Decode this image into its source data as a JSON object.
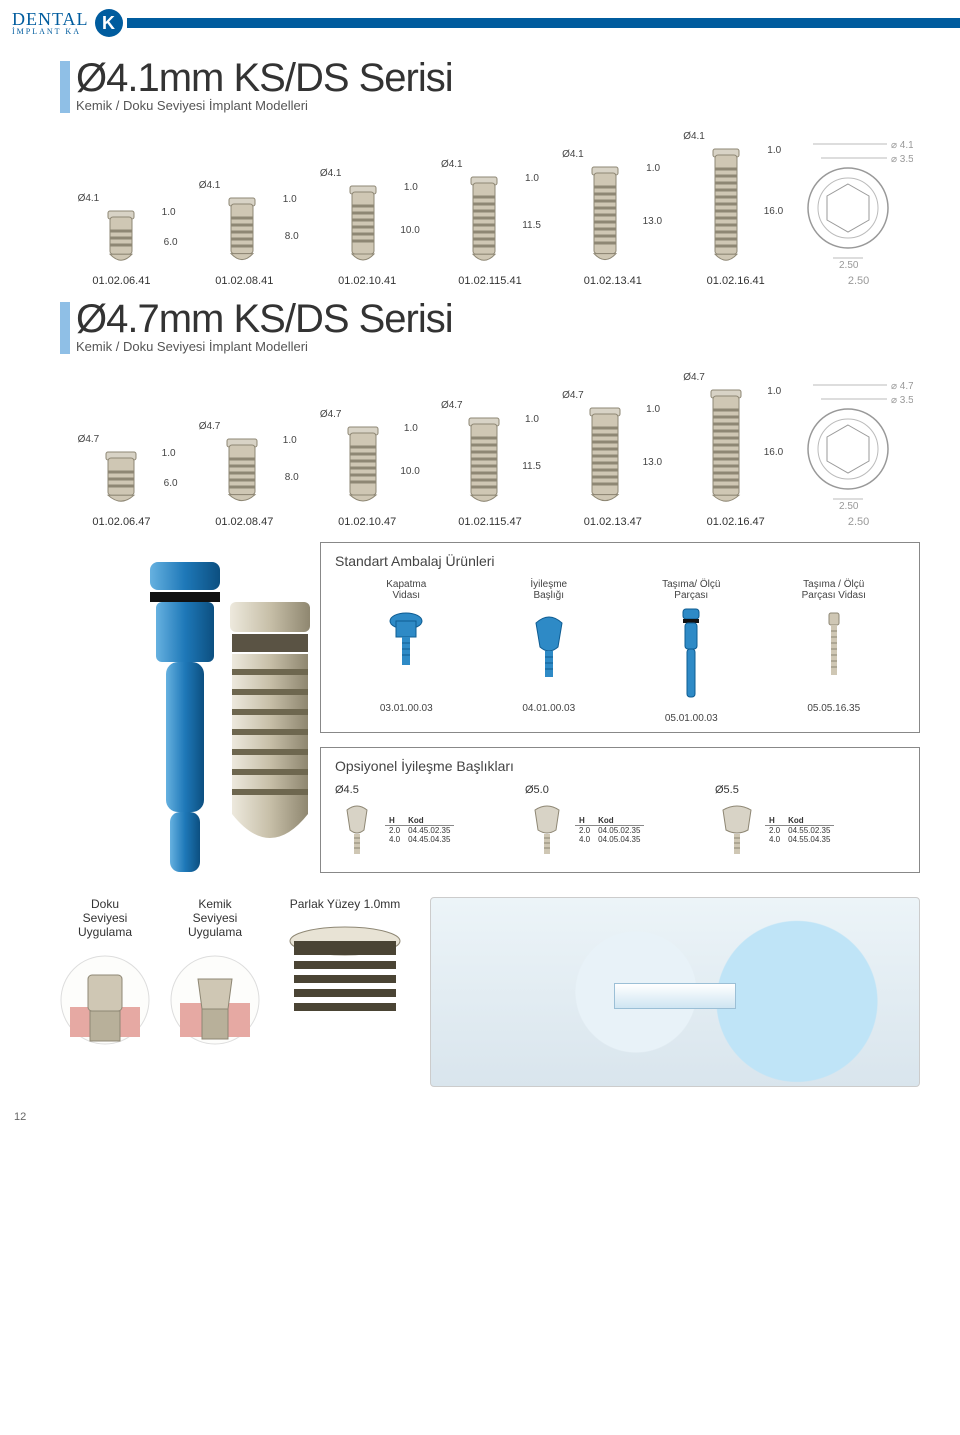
{
  "brand": {
    "line1": "DENTAL",
    "line2": "İMPLANT KA",
    "letter": "K"
  },
  "series41": {
    "title": "Ø4.1mm KS/DS Serisi",
    "subtitle": "Kemik / Doku Seviyesi İmplant Modelleri",
    "diameter_label": "Ø4.1",
    "shoulder": "1.0",
    "lengths": [
      "6.0",
      "8.0",
      "10.0",
      "11.5",
      "13.0",
      "16.0"
    ],
    "codes": [
      "01.02.06.41",
      "01.02.08.41",
      "01.02.10.41",
      "01.02.115.41",
      "01.02.13.41",
      "01.02.16.41"
    ],
    "top_outer": "4.1",
    "top_inner": "3.5",
    "top_width": "2.50"
  },
  "series47": {
    "title": "Ø4.7mm KS/DS Serisi",
    "subtitle": "Kemik / Doku Seviyesi İmplant Modelleri",
    "diameter_label": "Ø4.7",
    "shoulder": "1.0",
    "lengths": [
      "6.0",
      "8.0",
      "10.0",
      "11.5",
      "13.0",
      "16.0"
    ],
    "codes": [
      "01.02.06.47",
      "01.02.08.47",
      "01.02.10.47",
      "01.02.115.47",
      "01.02.13.47",
      "01.02.16.47"
    ],
    "top_outer": "4.7",
    "top_inner": "3.5",
    "top_width": "2.50"
  },
  "standard_pack": {
    "title": "Standart Ambalaj Ürünleri",
    "items": [
      {
        "label": "Kapatma\nVidası",
        "code": "03.01.00.03"
      },
      {
        "label": "İyileşme\nBaşlığı",
        "code": "04.01.00.03"
      },
      {
        "label": "Taşıma/ Ölçü\nParçası",
        "code": "05.01.00.03"
      },
      {
        "label": "Taşıma / Ölçü\nParçası Vidası",
        "code": "05.05.16.35"
      }
    ]
  },
  "optional": {
    "title": "Opsiyonel İyileşme Başlıkları",
    "h_label": "H",
    "k_label": "Kod",
    "groups": [
      {
        "dia": "Ø4.5",
        "rows": [
          [
            "2.0",
            "04.45.02.35"
          ],
          [
            "4.0",
            "04.45.04.35"
          ]
        ]
      },
      {
        "dia": "Ø5.0",
        "rows": [
          [
            "2.0",
            "04.05.02.35"
          ],
          [
            "4.0",
            "04.05.04.35"
          ]
        ]
      },
      {
        "dia": "Ø5.5",
        "rows": [
          [
            "2.0",
            "04.55.02.35"
          ],
          [
            "4.0",
            "04.55.04.35"
          ]
        ]
      }
    ]
  },
  "bottom": {
    "doku": "Doku\nSeviyesi\nUygulama",
    "kemik": "Kemik\nSeviyesi\nUygulama",
    "parlak": "Parlak Yüzey 1.0mm"
  },
  "page_number": "12",
  "colors": {
    "brand_blue": "#005C9E",
    "marker_blue": "#8FBFE6",
    "implant_body": "#CFC7B4",
    "implant_edge": "#8E8774",
    "blue_part": "#2E8AC6",
    "blue_dark": "#0E5C92",
    "heal_body": "#D8D3C6",
    "gum_pink": "#E6A9A3",
    "dim_gray": "#999999"
  }
}
